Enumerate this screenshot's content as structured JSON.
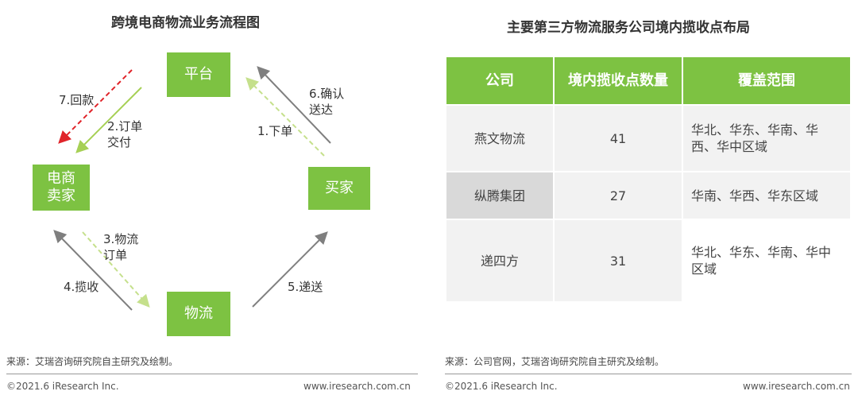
{
  "left_panel": {
    "title": "跨境电商物流业务流程图",
    "nodes": {
      "platform": "平台",
      "seller_line1": "电商",
      "seller_line2": "卖家",
      "buyer": "买家",
      "logistics": "物流"
    },
    "edges": {
      "e1": "1.下单",
      "e2_line1": "2.订单",
      "e2_line2": "交付",
      "e3_line1": "3.物流",
      "e3_line2": "订单",
      "e4": "4.揽收",
      "e5": "5.递送",
      "e6_line1": "6.确认",
      "e6_line2": "送达",
      "e7": "7.回款"
    },
    "source": "来源：艾瑞咨询研究院自主研究及绘制。",
    "footer_left": "©2021.6 iResearch Inc.",
    "footer_right": "www.iresearch.com.cn"
  },
  "right_panel": {
    "title": "主要第三方物流服务公司境内揽收点布局",
    "headers": [
      "公司",
      "境内揽收点数量",
      "覆盖范围"
    ],
    "rows": [
      {
        "company": "燕文物流",
        "count": "41",
        "coverage": "华北、华东、华南、华西、华中区域"
      },
      {
        "company": "纵腾集团",
        "count": "27",
        "coverage": "华南、华西、华东区域"
      },
      {
        "company": "递四方",
        "count": "31",
        "coverage": "华北、华东、华南、华中区域"
      }
    ],
    "source": "来源：公司官网，艾瑞咨询研究院自主研究及绘制。",
    "footer_left": "©2021.6 iResearch Inc.",
    "footer_right": "www.iresearch.com.cn"
  },
  "colors": {
    "accent_green": "#7dc242",
    "arrow_gray": "#7f7f7f",
    "arrow_red": "#e0242a",
    "arrow_dashed_green": "#b4d96a"
  }
}
